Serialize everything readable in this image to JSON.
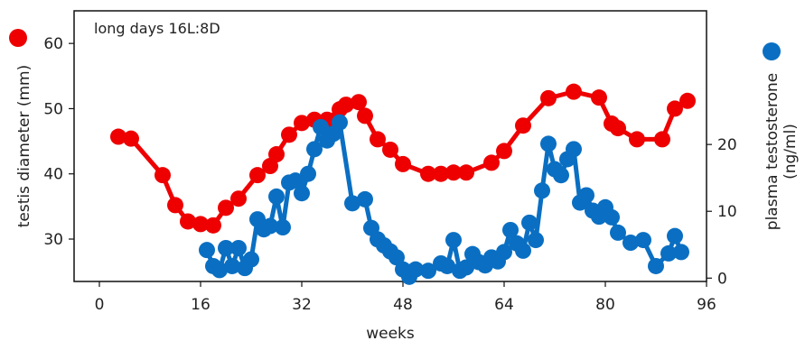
{
  "chart_data": {
    "type": "line",
    "annotation": "long days 16L:8D",
    "xlabel": "weeks",
    "xlim": [
      -4,
      96
    ],
    "xticks": [
      "0",
      "16",
      "32",
      "48",
      "64",
      "80",
      "96"
    ],
    "y_left": {
      "label": "testis diameter (mm)",
      "ylim": [
        23.5,
        65
      ],
      "ticks": [
        "30",
        "40",
        "50",
        "60"
      ]
    },
    "y_right": {
      "label": "plasma testosterone (ng/ml)",
      "label_line1": "plasma testosterone",
      "label_line2": "(ng/ml)",
      "ylim": [
        -0.5,
        40
      ],
      "ticks": [
        "0",
        "10",
        "20"
      ]
    },
    "series": [
      {
        "axis": "left",
        "color": "#ee0000",
        "x": [
          3,
          5,
          10,
          12,
          14,
          16,
          18,
          20,
          22,
          25,
          27,
          28,
          30,
          32,
          34,
          36,
          38,
          39,
          41,
          42,
          44,
          46,
          48,
          52,
          54,
          56,
          58,
          62,
          64,
          67,
          71,
          75,
          79,
          81,
          82,
          85,
          89,
          91,
          93
        ],
        "values": [
          45.7,
          45.4,
          39.8,
          35.2,
          32.7,
          32.3,
          32.1,
          34.8,
          36.2,
          39.8,
          41.2,
          43.0,
          46.0,
          47.8,
          48.3,
          48.3,
          49.9,
          50.6,
          51.0,
          48.9,
          45.3,
          43.7,
          41.5,
          40.0,
          40.0,
          40.2,
          40.2,
          41.7,
          43.5,
          47.4,
          51.6,
          52.6,
          51.7,
          47.7,
          47.0,
          45.3,
          45.3,
          50.0,
          51.2
        ]
      },
      {
        "axis": "right",
        "color": "#0a6fc2",
        "x": [
          17,
          18,
          19,
          20,
          21,
          22,
          23,
          24,
          25,
          26,
          27,
          28,
          29,
          30,
          31,
          32,
          33,
          34,
          35,
          36,
          37,
          38,
          40,
          42,
          43,
          44,
          45,
          46,
          47,
          48,
          49,
          50,
          52,
          54,
          55,
          56,
          57,
          58,
          59,
          60,
          61,
          62,
          63,
          64,
          65,
          66,
          67,
          68,
          69,
          70,
          71,
          72,
          73,
          74,
          75,
          76,
          77,
          78,
          79,
          80,
          81,
          82,
          84,
          86,
          88,
          90,
          91,
          92
        ],
        "values": [
          4.2,
          1.8,
          1.2,
          4.5,
          1.8,
          4.5,
          1.5,
          2.8,
          8.8,
          7.3,
          7.8,
          12.2,
          7.6,
          14.3,
          14.6,
          12.7,
          15.6,
          19.3,
          22.6,
          20.6,
          21.6,
          23.3,
          11.2,
          11.8,
          7.5,
          5.8,
          4.9,
          4.0,
          3.1,
          1.3,
          0.2,
          1.3,
          1.1,
          2.2,
          1.8,
          5.7,
          1.1,
          1.6,
          3.6,
          2.4,
          1.9,
          3.1,
          2.5,
          3.9,
          7.2,
          5.2,
          4.1,
          8.3,
          5.7,
          13.1,
          20.1,
          16.3,
          15.4,
          17.8,
          19.3,
          11.3,
          12.4,
          10.1,
          9.2,
          10.6,
          9.1,
          6.8,
          5.3,
          5.7,
          1.8,
          3.7,
          6.3,
          3.9
        ]
      }
    ],
    "legend": [
      {
        "symbol": "circle",
        "color": "#ee0000",
        "position": "left",
        "series": 0
      },
      {
        "symbol": "circle",
        "color": "#0a6fc2",
        "position": "right",
        "series": 1
      }
    ]
  }
}
